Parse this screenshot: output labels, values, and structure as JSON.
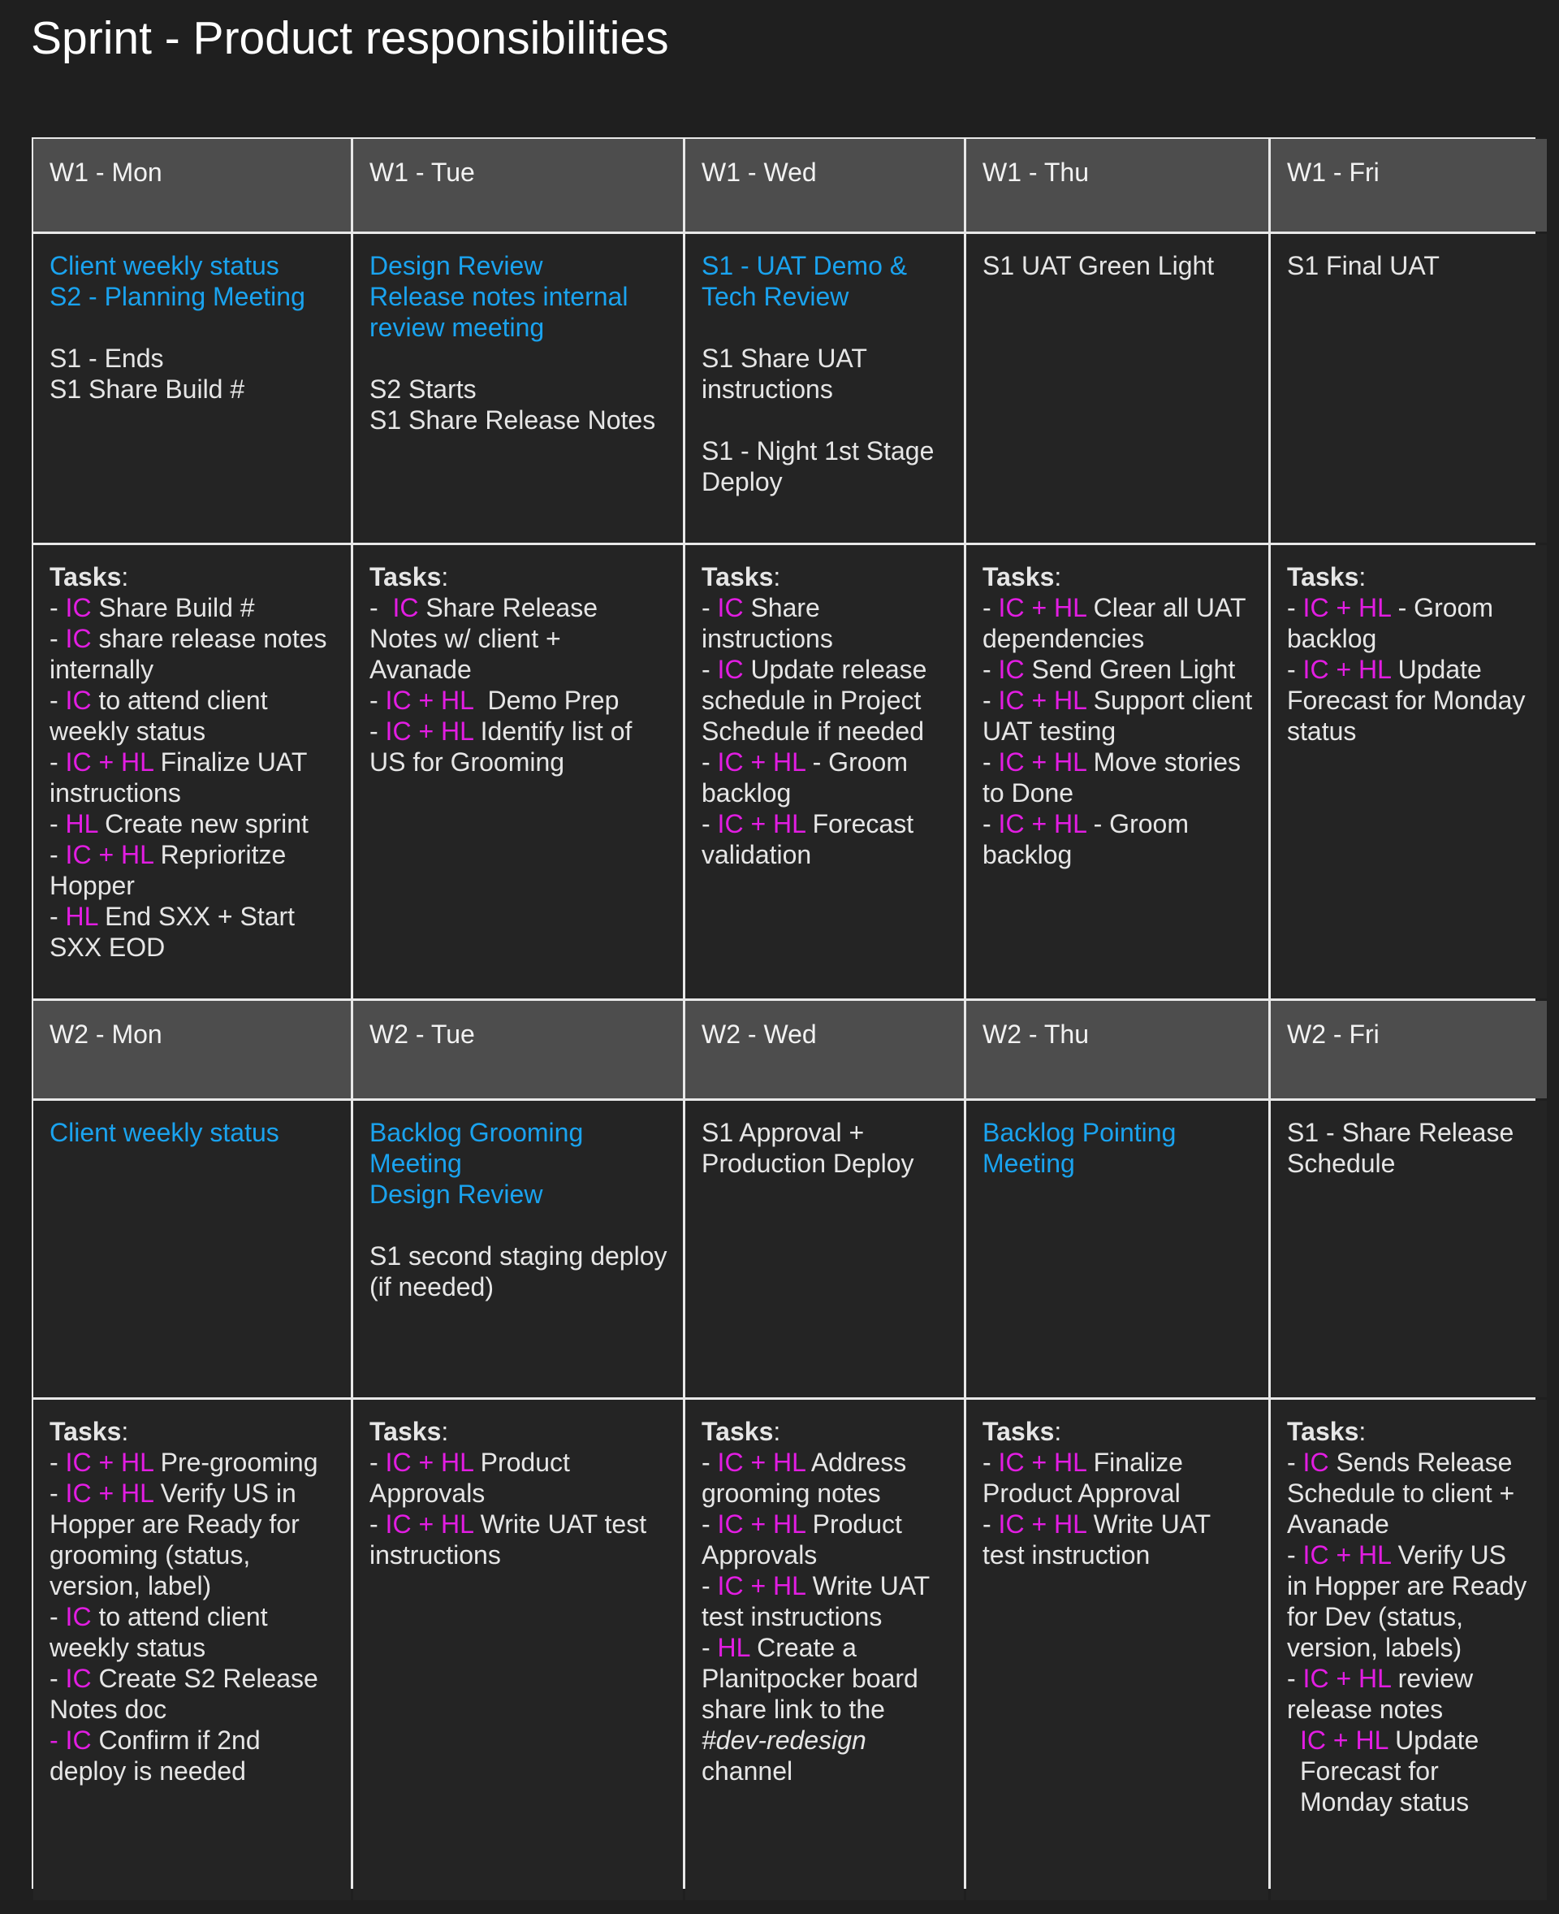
{
  "title": "Sprint - Product responsibilities",
  "colors": {
    "header_bg": "#4d4d4d",
    "cell_bg": "#242424",
    "meeting": "#1aa3ef",
    "role": "#e21de2",
    "text": "#e6e6e6"
  },
  "tasks_label": "Tasks",
  "weeks": [
    {
      "headers": [
        "W1 - Mon",
        "W1 - Tue",
        "W1 - Wed",
        "W1 - Thu",
        "W1 - Fri"
      ],
      "events": [
        [
          {
            "t": "Client weekly status",
            "c": "blue"
          },
          {
            "t": "S2 - Planning Meeting",
            "c": "blue"
          },
          {
            "t": "",
            "c": "gap"
          },
          {
            "t": "S1 - Ends",
            "c": "white"
          },
          {
            "t": "S1 Share Build #",
            "c": "white"
          }
        ],
        [
          {
            "t": "Design Review",
            "c": "blue"
          },
          {
            "t": "Release notes internal review meeting",
            "c": "blue"
          },
          {
            "t": "",
            "c": "gap"
          },
          {
            "t": "S2 Starts",
            "c": "white"
          },
          {
            "t": "S1 Share Release Notes",
            "c": "white"
          }
        ],
        [
          {
            "t": "S1 - UAT Demo & Tech Review",
            "c": "blue"
          },
          {
            "t": "",
            "c": "gap"
          },
          {
            "t": "S1 Share UAT instructions",
            "c": "white"
          },
          {
            "t": "",
            "c": "gap"
          },
          {
            "t": "S1 - Night 1st Stage Deploy",
            "c": "white"
          }
        ],
        [
          {
            "t": "S1 UAT Green Light",
            "c": "white"
          }
        ],
        [
          {
            "t": "S1 Final UAT",
            "c": "white"
          }
        ]
      ],
      "tasks": [
        [
          [
            [
              "- ",
              "w"
            ],
            [
              "IC",
              "p"
            ],
            [
              " Share Build #",
              "w"
            ]
          ],
          [
            [
              "- ",
              "w"
            ],
            [
              "IC",
              "p"
            ],
            [
              " share release notes internally",
              "w"
            ]
          ],
          [
            [
              "- ",
              "w"
            ],
            [
              "IC",
              "p"
            ],
            [
              " to attend client weekly status",
              "w"
            ]
          ],
          [
            [
              "- ",
              "w"
            ],
            [
              "IC + HL",
              "p"
            ],
            [
              " Finalize UAT instructions",
              "w"
            ]
          ],
          [
            [
              "- ",
              "w"
            ],
            [
              "HL",
              "p"
            ],
            [
              " Create new sprint",
              "w"
            ]
          ],
          [
            [
              "- ",
              "w"
            ],
            [
              "IC + HL",
              "p"
            ],
            [
              " Reprioritze Hopper",
              "w"
            ]
          ],
          [
            [
              "- ",
              "w"
            ],
            [
              "HL",
              "p"
            ],
            [
              " End SXX + Start SXX EOD",
              "w"
            ]
          ]
        ],
        [
          [
            [
              "-  ",
              "w"
            ],
            [
              "IC",
              "p"
            ],
            [
              " Share Release Notes w/ client + Avanade",
              "w"
            ]
          ],
          [
            [
              "- ",
              "w"
            ],
            [
              "IC + HL",
              "p"
            ],
            [
              "  Demo Prep",
              "w"
            ]
          ],
          [
            [
              "- ",
              "w"
            ],
            [
              "IC + HL",
              "p"
            ],
            [
              " Identify list of US for Grooming",
              "w"
            ]
          ]
        ],
        [
          [
            [
              "- ",
              "w"
            ],
            [
              "IC",
              "p"
            ],
            [
              " Share instructions",
              "w"
            ]
          ],
          [
            [
              "- ",
              "w"
            ],
            [
              "IC",
              "p"
            ],
            [
              " Update release schedule in Project Schedule if needed",
              "w"
            ]
          ],
          [
            [
              "- ",
              "w"
            ],
            [
              "IC + HL",
              "p"
            ],
            [
              " - Groom backlog",
              "w"
            ]
          ],
          [
            [
              "- ",
              "w"
            ],
            [
              "IC + HL",
              "p"
            ],
            [
              " Forecast validation",
              "w"
            ]
          ]
        ],
        [
          [
            [
              "- ",
              "w"
            ],
            [
              "IC + HL",
              "p"
            ],
            [
              " Clear all UAT dependencies",
              "w"
            ]
          ],
          [
            [
              "- ",
              "w"
            ],
            [
              "IC",
              "p"
            ],
            [
              " Send Green Light",
              "w"
            ]
          ],
          [
            [
              "- ",
              "w"
            ],
            [
              "IC + HL",
              "p"
            ],
            [
              " Support client UAT testing",
              "w"
            ]
          ],
          [
            [
              "- ",
              "w"
            ],
            [
              "IC + HL",
              "p"
            ],
            [
              " Move stories to Done",
              "w"
            ]
          ],
          [
            [
              "- ",
              "w"
            ],
            [
              "IC + HL",
              "p"
            ],
            [
              " - Groom backlog",
              "w"
            ]
          ]
        ],
        [
          [
            [
              "- ",
              "w"
            ],
            [
              "IC + HL",
              "p"
            ],
            [
              " - Groom backlog",
              "w"
            ]
          ],
          [
            [
              "- ",
              "w"
            ],
            [
              "IC + HL",
              "p"
            ],
            [
              " Update Forecast for Monday status",
              "w"
            ]
          ]
        ]
      ]
    },
    {
      "headers": [
        "W2 - Mon",
        "W2 - Tue",
        "W2 - Wed",
        "W2 - Thu",
        "W2 - Fri"
      ],
      "events": [
        [
          {
            "t": "Client weekly status",
            "c": "blue"
          }
        ],
        [
          {
            "t": "Backlog Grooming Meeting",
            "c": "blue"
          },
          {
            "t": "Design Review",
            "c": "blue"
          },
          {
            "t": "",
            "c": "gap"
          },
          {
            "t": "S1 second staging deploy (if needed)",
            "c": "white"
          }
        ],
        [
          {
            "t": "S1 Approval + Production Deploy",
            "c": "white"
          }
        ],
        [
          {
            "t": "Backlog Pointing Meeting",
            "c": "blue"
          }
        ],
        [
          {
            "t": "S1 - Share Release Schedule",
            "c": "white"
          }
        ]
      ],
      "tasks": [
        [
          [
            [
              "- ",
              "w"
            ],
            [
              "IC + HL",
              "p"
            ],
            [
              " Pre-grooming",
              "w"
            ]
          ],
          [
            [
              "- ",
              "w"
            ],
            [
              "IC + HL",
              "p"
            ],
            [
              " Verify US in Hopper are Ready for grooming (status, version, label)",
              "w"
            ]
          ],
          [
            [
              "- ",
              "w"
            ],
            [
              "IC",
              "p"
            ],
            [
              " to attend client weekly status",
              "w"
            ]
          ],
          [
            [
              "- ",
              "w"
            ],
            [
              "IC",
              "p"
            ],
            [
              " Create S2 Release Notes doc",
              "w"
            ]
          ],
          [
            [
              "- IC",
              "p"
            ],
            [
              " Confirm if 2nd deploy is needed",
              "w"
            ]
          ]
        ],
        [
          [
            [
              "- ",
              "w"
            ],
            [
              "IC + HL",
              "p"
            ],
            [
              " Product Approvals",
              "w"
            ]
          ],
          [
            [
              "- ",
              "w"
            ],
            [
              "IC + HL",
              "p"
            ],
            [
              " Write UAT test instructions",
              "w"
            ]
          ]
        ],
        [
          [
            [
              "- ",
              "w"
            ],
            [
              "IC + HL",
              "p"
            ],
            [
              " Address grooming notes",
              "w"
            ]
          ],
          [
            [
              "- ",
              "w"
            ],
            [
              "IC + HL",
              "p"
            ],
            [
              " Product Approvals",
              "w"
            ]
          ],
          [
            [
              "- ",
              "w"
            ],
            [
              "IC + HL",
              "p"
            ],
            [
              " Write UAT test instructions",
              "w"
            ]
          ],
          [
            [
              "- ",
              "w"
            ],
            [
              "HL",
              "p"
            ],
            [
              " Create a Planitpocker board share link to the ",
              "w"
            ],
            [
              "#dev-redesign",
              "i"
            ],
            [
              " channel",
              "w"
            ]
          ]
        ],
        [
          [
            [
              "- ",
              "w"
            ],
            [
              "IC + HL",
              "p"
            ],
            [
              " Finalize Product Approval",
              "w"
            ]
          ],
          [
            [
              "- ",
              "w"
            ],
            [
              "IC + HL",
              "p"
            ],
            [
              " Write UAT test instruction",
              "w"
            ]
          ]
        ],
        [
          [
            [
              "- ",
              "w"
            ],
            [
              "IC",
              "p"
            ],
            [
              " Sends Release Schedule to client + Avanade",
              "w"
            ]
          ],
          [
            [
              "- ",
              "w"
            ],
            [
              "IC + HL",
              "p"
            ],
            [
              " Verify US  in Hopper are Ready for Dev (status, version, labels)",
              "w"
            ]
          ],
          [
            [
              "- ",
              "w"
            ],
            [
              "IC + HL",
              "p"
            ],
            [
              " review release notes",
              "w"
            ]
          ],
          [
            [
              "",
              "w"
            ],
            [
              "IC + HL",
              "p"
            ],
            [
              " Update Forecast for Monday status",
              "w"
            ]
          ]
        ]
      ]
    }
  ]
}
